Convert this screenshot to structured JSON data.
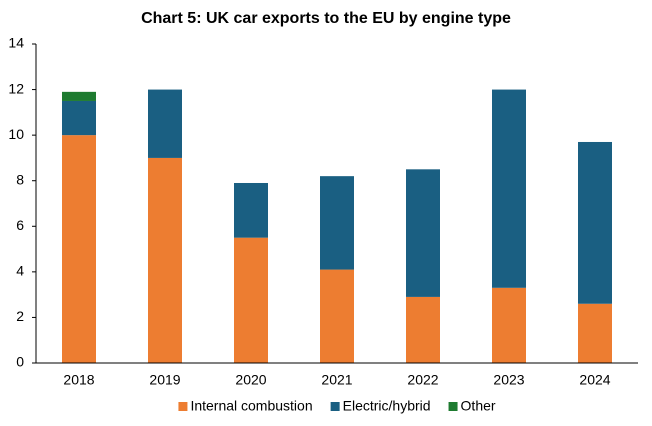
{
  "chart_data": {
    "type": "stacked-bar",
    "title": "Chart 5: UK car exports to the EU by engine type",
    "categories": [
      "2018",
      "2019",
      "2020",
      "2021",
      "2022",
      "2023",
      "2024"
    ],
    "series": [
      {
        "name": "Internal combustion",
        "color": "#ED7D31",
        "values": [
          10.0,
          9.0,
          5.5,
          4.1,
          2.9,
          3.3,
          2.6
        ]
      },
      {
        "name": "Electric/hybrid",
        "color": "#1A5F82",
        "values": [
          1.5,
          3.0,
          2.4,
          4.1,
          5.6,
          8.7,
          7.1
        ]
      },
      {
        "name": "Other",
        "color": "#1E7B30",
        "values": [
          0.4,
          0,
          0,
          0,
          0,
          0,
          0
        ]
      }
    ],
    "ylim": [
      0,
      14
    ],
    "yticks": [
      0,
      2,
      4,
      6,
      8,
      10,
      12,
      14
    ],
    "legend": "bottom"
  }
}
